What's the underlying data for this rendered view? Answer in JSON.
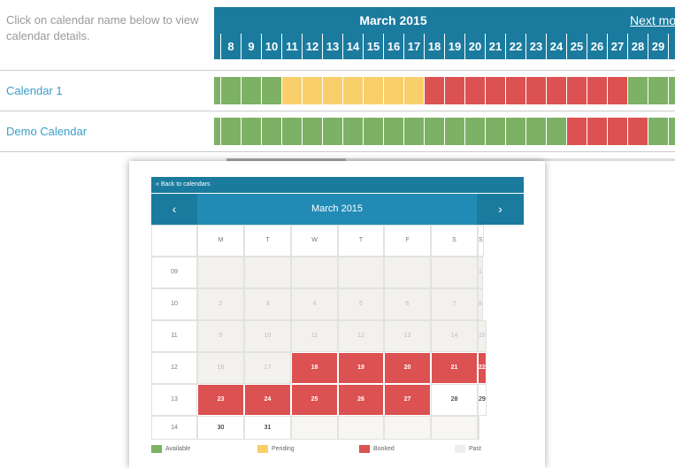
{
  "intro_text": "Click on calendar name below to view calendar details.",
  "overview": {
    "month_title": "March 2015",
    "next_link": "Next mo",
    "days": [
      "",
      "8",
      "9",
      "10",
      "11",
      "12",
      "13",
      "14",
      "15",
      "16",
      "17",
      "18",
      "19",
      "20",
      "21",
      "22",
      "23",
      "24",
      "25",
      "26",
      "27",
      "28",
      "29",
      "3"
    ],
    "calendars": [
      {
        "name": "Calendar 1",
        "statuses": [
          "available",
          "available",
          "available",
          "available",
          "pending",
          "pending",
          "pending",
          "pending",
          "pending",
          "pending",
          "pending",
          "booked",
          "booked",
          "booked",
          "booked",
          "booked",
          "booked",
          "booked",
          "booked",
          "booked",
          "booked",
          "available",
          "available",
          "available"
        ]
      },
      {
        "name": "Demo Calendar",
        "statuses": [
          "available",
          "available",
          "available",
          "available",
          "available",
          "available",
          "available",
          "available",
          "available",
          "available",
          "available",
          "available",
          "available",
          "available",
          "available",
          "available",
          "available",
          "available",
          "booked",
          "booked",
          "booked",
          "booked",
          "available",
          "available"
        ]
      }
    ]
  },
  "popup": {
    "back_label": "« Back to calendars",
    "month_title": "March 2015",
    "prev_icon": "‹",
    "next_icon": "›",
    "weekdays": [
      "M",
      "T",
      "W",
      "T",
      "F",
      "S",
      "S"
    ],
    "weeks": [
      {
        "num": "09",
        "days": [
          {
            "d": "",
            "s": "past"
          },
          {
            "d": "",
            "s": "past"
          },
          {
            "d": "",
            "s": "past"
          },
          {
            "d": "",
            "s": "past"
          },
          {
            "d": "",
            "s": "past"
          },
          {
            "d": "",
            "s": "past"
          },
          {
            "d": "1",
            "s": "past"
          }
        ]
      },
      {
        "num": "10",
        "days": [
          {
            "d": "2",
            "s": "past"
          },
          {
            "d": "3",
            "s": "past"
          },
          {
            "d": "4",
            "s": "past"
          },
          {
            "d": "5",
            "s": "past"
          },
          {
            "d": "6",
            "s": "past"
          },
          {
            "d": "7",
            "s": "past"
          },
          {
            "d": "8",
            "s": "past"
          }
        ]
      },
      {
        "num": "11",
        "days": [
          {
            "d": "9",
            "s": "past"
          },
          {
            "d": "10",
            "s": "past"
          },
          {
            "d": "11",
            "s": "past"
          },
          {
            "d": "12",
            "s": "past"
          },
          {
            "d": "13",
            "s": "past"
          },
          {
            "d": "14",
            "s": "past"
          },
          {
            "d": "15",
            "s": "past"
          }
        ]
      },
      {
        "num": "12",
        "days": [
          {
            "d": "16",
            "s": "past"
          },
          {
            "d": "17",
            "s": "past"
          },
          {
            "d": "18",
            "s": "booked"
          },
          {
            "d": "19",
            "s": "booked"
          },
          {
            "d": "20",
            "s": "booked"
          },
          {
            "d": "21",
            "s": "booked"
          },
          {
            "d": "22",
            "s": "booked"
          }
        ]
      },
      {
        "num": "13",
        "days": [
          {
            "d": "23",
            "s": "booked"
          },
          {
            "d": "24",
            "s": "booked"
          },
          {
            "d": "25",
            "s": "booked"
          },
          {
            "d": "26",
            "s": "booked"
          },
          {
            "d": "27",
            "s": "booked"
          },
          {
            "d": "28",
            "s": "available"
          },
          {
            "d": "29",
            "s": "available"
          }
        ]
      },
      {
        "num": "14",
        "days": [
          {
            "d": "30",
            "s": "available"
          },
          {
            "d": "31",
            "s": "available"
          },
          {
            "d": "",
            "s": "empty"
          },
          {
            "d": "",
            "s": "empty"
          },
          {
            "d": "",
            "s": "empty"
          },
          {
            "d": "",
            "s": "empty"
          },
          {
            "d": "",
            "s": "empty"
          }
        ]
      }
    ],
    "legend": [
      {
        "label": "Available",
        "color": "#7db165"
      },
      {
        "label": "Pending",
        "color": "#f8cf6a"
      },
      {
        "label": "Booked",
        "color": "#dc5151"
      },
      {
        "label": "Past",
        "color": "#eeeeea"
      }
    ]
  },
  "colors": {
    "available": "#7db165",
    "pending": "#f8cf6a",
    "booked": "#dc5151",
    "header": "#1b7b9e"
  }
}
